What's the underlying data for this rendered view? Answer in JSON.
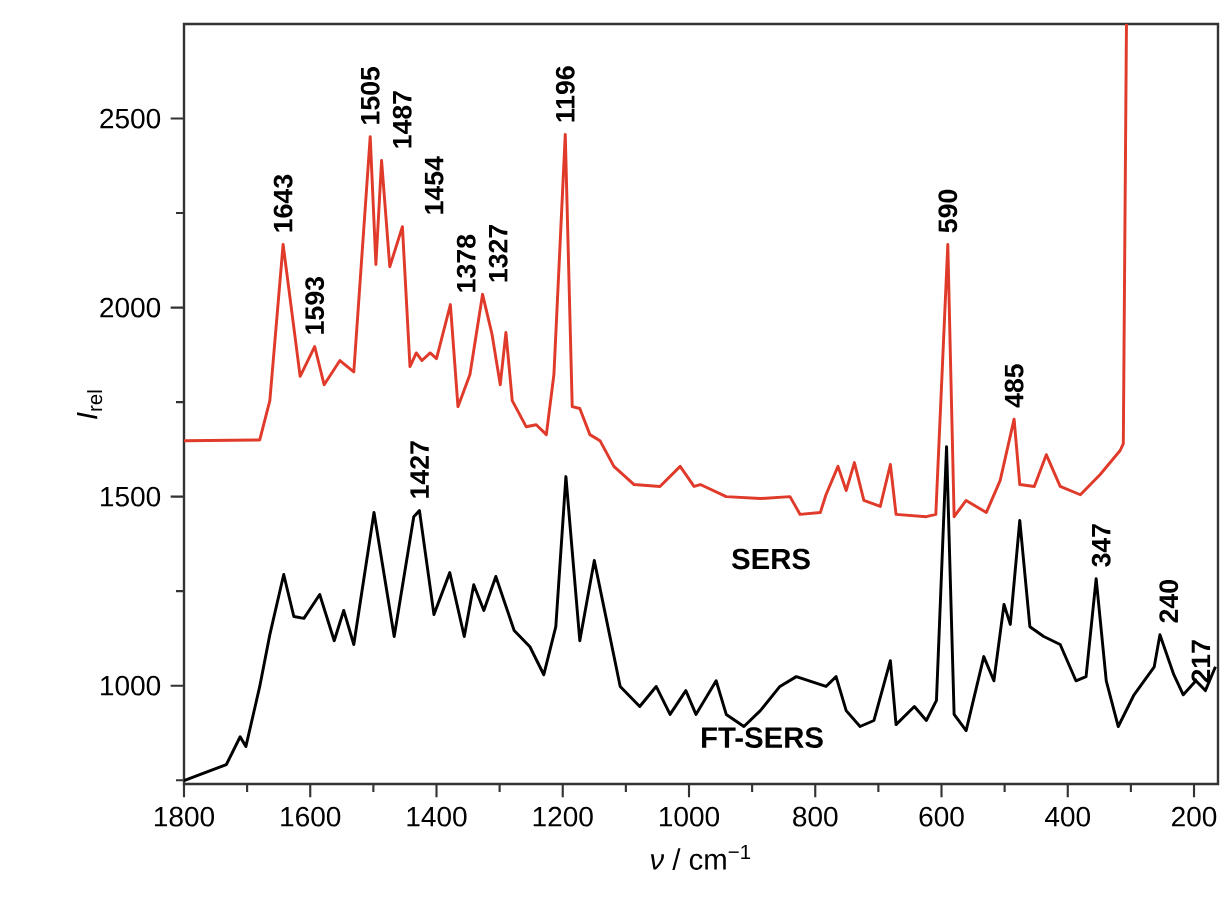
{
  "chart_data": {
    "type": "line",
    "xlabel": "*ν* / cm$^{−1}$",
    "ylabel": "*I*$_{rel}$",
    "xlim": [
      1800,
      162
    ],
    "ylim": [
      740,
      2750
    ],
    "xticks": [
      1800,
      {
        "value": 1700,
        "label": null
      },
      1600,
      {
        "value": 1500,
        "label": null
      },
      1400,
      {
        "value": 1300,
        "label": null
      },
      1200,
      {
        "value": 1100,
        "label": null
      },
      1000,
      {
        "value": 900,
        "label": null
      },
      800,
      {
        "value": 700,
        "label": null
      },
      600,
      {
        "value": 500,
        "label": null
      },
      400,
      {
        "value": 300,
        "label": null
      },
      200
    ],
    "yticks": [
      {
        "value": 750,
        "label": null
      },
      1000,
      {
        "value": 1250,
        "label": null
      },
      1500,
      {
        "value": 1750,
        "label": null
      },
      2000,
      {
        "value": 2250,
        "label": null
      },
      2500
    ],
    "series": [
      {
        "name": "SERS",
        "color": "#e03a2a",
        "x": [
          1800,
          1680,
          1664,
          1643,
          1616,
          1593,
          1578,
          1553,
          1531,
          1505,
          1496,
          1487,
          1474,
          1454,
          1442,
          1432,
          1423,
          1410,
          1400,
          1378,
          1366,
          1347,
          1327,
          1312,
          1299,
          1290,
          1280,
          1258,
          1242,
          1226,
          1214,
          1196,
          1185,
          1173,
          1157,
          1141,
          1119,
          1087,
          1046,
          1014,
          992,
          982,
          941,
          887,
          840,
          824,
          792,
          783,
          764,
          751,
          738,
          723,
          697,
          681,
          672,
          624,
          609,
          590,
          580,
          561,
          529,
          507,
          485,
          476,
          453,
          434,
          412,
          380,
          349,
          317,
          312,
          307
        ],
        "values": [
          1648,
          1650,
          1754,
          2167,
          1818,
          1897,
          1796,
          1860,
          1830,
          2452,
          2114,
          2389,
          2108,
          2214,
          1844,
          1880,
          1860,
          1880,
          1865,
          2008,
          1738,
          1823,
          2035,
          1929,
          1796,
          1934,
          1754,
          1685,
          1690,
          1664,
          1823,
          2458,
          1738,
          1733,
          1664,
          1648,
          1580,
          1532,
          1527,
          1580,
          1527,
          1532,
          1500,
          1495,
          1500,
          1453,
          1458,
          1505,
          1580,
          1516,
          1590,
          1490,
          1474,
          1585,
          1453,
          1447,
          1453,
          2167,
          1447,
          1490,
          1458,
          1543,
          1705,
          1532,
          1527,
          1611,
          1527,
          1505,
          1558,
          1622,
          1640,
          2750
        ]
      },
      {
        "name": "FT-SERS",
        "color": "#000000",
        "x": [
          1800,
          1775,
          1733,
          1711,
          1702,
          1680,
          1664,
          1642,
          1626,
          1610,
          1585,
          1562,
          1547,
          1531,
          1499,
          1467,
          1436,
          1427,
          1404,
          1379,
          1356,
          1341,
          1325,
          1306,
          1277,
          1252,
          1230,
          1211,
          1195,
          1173,
          1150,
          1135,
          1109,
          1078,
          1052,
          1030,
          1005,
          989,
          957,
          941,
          913,
          887,
          856,
          830,
          783,
          767,
          751,
          729,
          707,
          681,
          672,
          643,
          624,
          608,
          592,
          580,
          561,
          533,
          517,
          501,
          491,
          476,
          460,
          438,
          412,
          387,
          371,
          355,
          339,
          320,
          295,
          263,
          254,
          232,
          217,
          197,
          182,
          166
        ],
        "values": [
          749,
          765,
          791,
          865,
          839,
          998,
          1135,
          1294,
          1183,
          1178,
          1241,
          1119,
          1199,
          1109,
          1458,
          1130,
          1447,
          1463,
          1188,
          1299,
          1130,
          1267,
          1199,
          1289,
          1146,
          1103,
          1029,
          1156,
          1553,
          1119,
          1331,
          1209,
          998,
          945,
          998,
          924,
          987,
          924,
          1013,
          924,
          892,
          934,
          998,
          1024,
          998,
          1024,
          934,
          892,
          908,
          1066,
          897,
          945,
          908,
          961,
          1632,
          924,
          881,
          1077,
          1013,
          1215,
          1162,
          1437,
          1156,
          1130,
          1109,
          1013,
          1024,
          1283,
          1013,
          892,
          976,
          1050,
          1135,
          1029,
          976,
          1013,
          987,
          1050
        ]
      }
    ],
    "annotations": [
      {
        "text": "1643",
        "x": 1643,
        "y": 2167
      },
      {
        "text": "1593",
        "x": 1593,
        "y": 1897
      },
      {
        "text": "1505",
        "x": 1505,
        "y": 2452
      },
      {
        "text": "1487",
        "x": 1487,
        "y": 2389
      },
      {
        "text": "1454",
        "x": 1454,
        "y": 2214
      },
      {
        "text": "1378",
        "x": 1378,
        "y": 2008
      },
      {
        "text": "1327",
        "x": 1327,
        "y": 2035
      },
      {
        "text": "1196",
        "x": 1196,
        "y": 2458
      },
      {
        "text": "590",
        "x": 590,
        "y": 2167
      },
      {
        "text": "485",
        "x": 485,
        "y": 1705
      },
      {
        "text": "1427",
        "x": 1427,
        "y": 1463
      },
      {
        "text": "347",
        "x": 347,
        "y": 1283
      },
      {
        "text": "240",
        "x": 240,
        "y": 1135
      },
      {
        "text": "217",
        "x": 217,
        "y": 976
      }
    ]
  }
}
